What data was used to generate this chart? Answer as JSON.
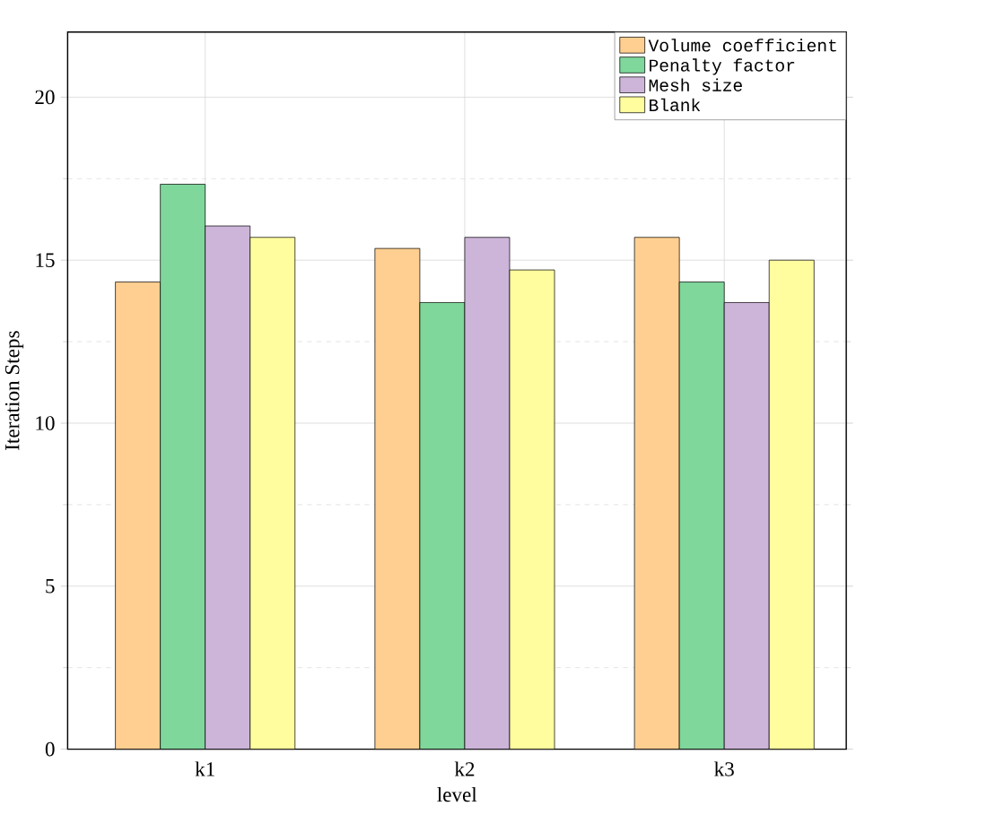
{
  "chart_data": {
    "type": "bar",
    "xlabel": "level",
    "ylabel": "Iteration Steps",
    "categories": [
      "k1",
      "k2",
      "k3"
    ],
    "series": [
      {
        "name": "Volume coefficient",
        "color": "#ffcf91",
        "values": [
          14.33,
          15.36,
          15.7
        ]
      },
      {
        "name": "Penalty factor",
        "color": "#7fd79b",
        "values": [
          17.33,
          13.7,
          14.33
        ]
      },
      {
        "name": "Mesh size",
        "color": "#cdb5da",
        "values": [
          16.05,
          15.7,
          13.7
        ]
      },
      {
        "name": "Blank",
        "color": "#fffd9e",
        "values": [
          15.7,
          14.7,
          15.0
        ]
      }
    ],
    "ylim": [
      0,
      22
    ],
    "yticks": [
      0,
      5,
      10,
      15,
      20
    ],
    "grid": true,
    "legend": "top right"
  }
}
